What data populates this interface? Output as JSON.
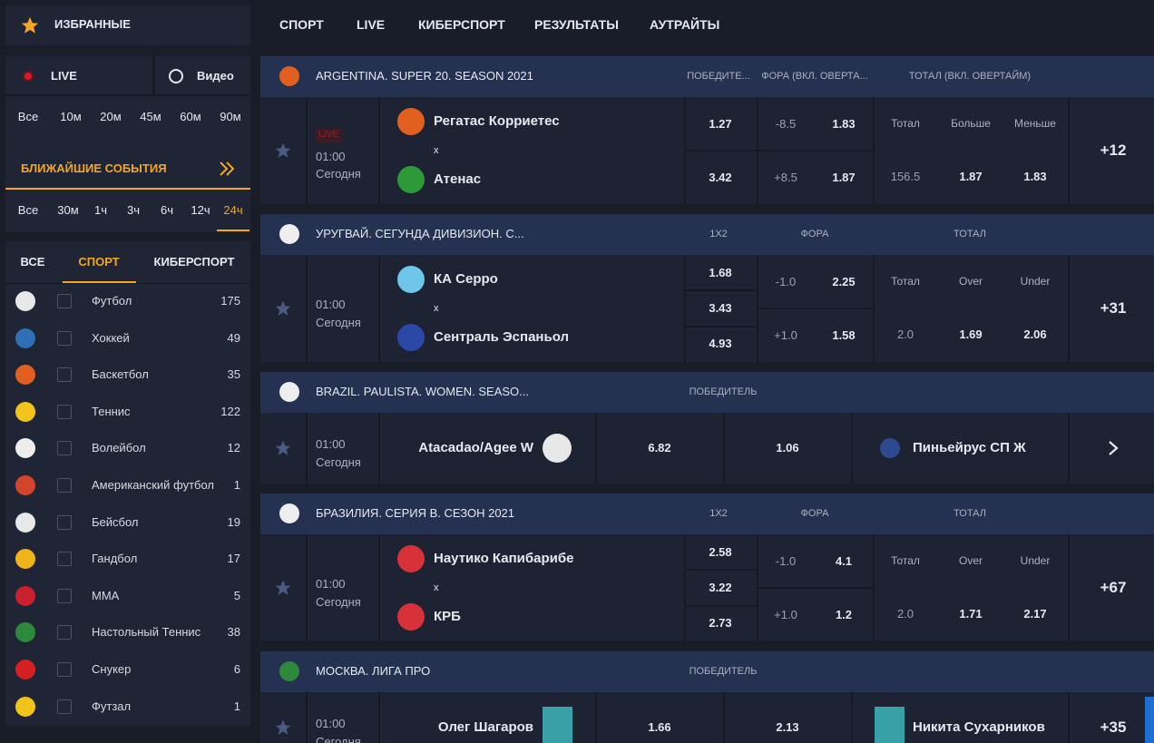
{
  "nav": [
    "СПОРТ",
    "LIVE",
    "КИБЕРСПОРТ",
    "РЕЗУЛЬТАТЫ",
    "АУТРАЙТЫ"
  ],
  "sidebar": {
    "favorites": "ИЗБРАННЫЕ",
    "live": "LIVE",
    "video": "Видео",
    "live_filters": [
      "Все",
      "10м",
      "20м",
      "45м",
      "60м",
      "90м"
    ],
    "upcoming": {
      "title": "БЛИЖАЙШИЕ СОБЫТИЯ",
      "filters": [
        "Все",
        "30м",
        "1ч",
        "3ч",
        "6ч",
        "12ч",
        "24ч"
      ],
      "active": 6
    },
    "tabs": {
      "items": [
        "ВСЕ",
        "СПОРТ",
        "КИБЕРСПОРТ"
      ],
      "active": 1
    },
    "sports": [
      {
        "name": "Футбол",
        "count": 175
      },
      {
        "name": "Хоккей",
        "count": 49
      },
      {
        "name": "Баскетбол",
        "count": 35
      },
      {
        "name": "Теннис",
        "count": 122
      },
      {
        "name": "Волейбол",
        "count": 12
      },
      {
        "name": "Американский футбол",
        "count": 1
      },
      {
        "name": "Бейсбол",
        "count": 19
      },
      {
        "name": "Гандбол",
        "count": 17
      },
      {
        "name": "MMA",
        "count": 5
      },
      {
        "name": "Настольный Теннис",
        "count": 38
      },
      {
        "name": "Снукер",
        "count": 6
      },
      {
        "name": "Футзал",
        "count": 1
      }
    ]
  },
  "events": [
    {
      "league": "ARGENTINA. SUPER 20. SEASON 2021",
      "columns": [
        "ПОБЕДИТЕ...",
        "ФОРА (ВКЛ. ОВЕРТА...",
        "ТОТАЛ (ВКЛ. ОВЕРТАЙМ)"
      ],
      "match": {
        "live": "LIVE",
        "time": "01:00",
        "day": "Сегодня",
        "team1": "Регатас Корриетес",
        "separator": "x",
        "team2": "Атенас",
        "win": [
          1.27,
          3.42
        ],
        "handicap": [
          [
            "-8.5",
            1.83
          ],
          [
            "+8.5",
            1.87
          ]
        ],
        "total_labels": [
          "Тотал",
          "Больше",
          "Меньше"
        ],
        "total": [
          "156.5",
          1.87,
          1.83
        ],
        "more": "+12"
      }
    },
    {
      "league": "УРУГВАЙ. СЕГУНДА ДИВИЗИОН. С...",
      "columns": [
        "1X2",
        "ФОРА",
        "ТОТАЛ"
      ],
      "match": {
        "time": "01:00",
        "day": "Сегодня",
        "team1": "КА Серро",
        "separator": "x",
        "team2": "Сентраль Эспаньол",
        "win": [
          1.68,
          3.43,
          4.93
        ],
        "handicap": [
          [
            "-1.0",
            2.25
          ],
          [
            "+1.0",
            1.58
          ]
        ],
        "total_labels": [
          "Тотал",
          "Over",
          "Under"
        ],
        "total": [
          "2.0",
          1.69,
          2.06
        ],
        "more": "+31"
      }
    },
    {
      "league": "BRAZIL. PAULISTA. WOMEN. SEASO...",
      "columns": [
        "ПОБЕДИТЕЛЬ"
      ],
      "match": {
        "time": "01:00",
        "day": "Сегодня",
        "team1": "Atacadao/Agee W",
        "odds": [
          6.82,
          1.06
        ],
        "team2": "Пиньейрус СП Ж"
      }
    },
    {
      "league": "БРАЗИЛИЯ. СЕРИЯ B. СЕЗОН 2021",
      "columns": [
        "1X2",
        "ФОРА",
        "ТОТАЛ"
      ],
      "match": {
        "time": "01:00",
        "day": "Сегодня",
        "team1": "Наутико Капибарибе",
        "separator": "x",
        "team2": "КРБ",
        "win": [
          2.58,
          3.22,
          2.73
        ],
        "handicap": [
          [
            "-1.0",
            4.1
          ],
          [
            "+1.0",
            1.2
          ]
        ],
        "total_labels": [
          "Тотал",
          "Over",
          "Under"
        ],
        "total": [
          "2.0",
          1.71,
          2.17
        ],
        "more": "+67"
      }
    },
    {
      "league": "МОСКВА. ЛИГА ПРО",
      "columns": [
        "ПОБЕДИТЕЛЬ"
      ],
      "match": {
        "time": "01:00",
        "day": "Сегодня",
        "team1": "Олег Шагаров",
        "odds": [
          1.66,
          2.13
        ],
        "team2": "Никита Сухарников",
        "more": "+35"
      }
    }
  ]
}
